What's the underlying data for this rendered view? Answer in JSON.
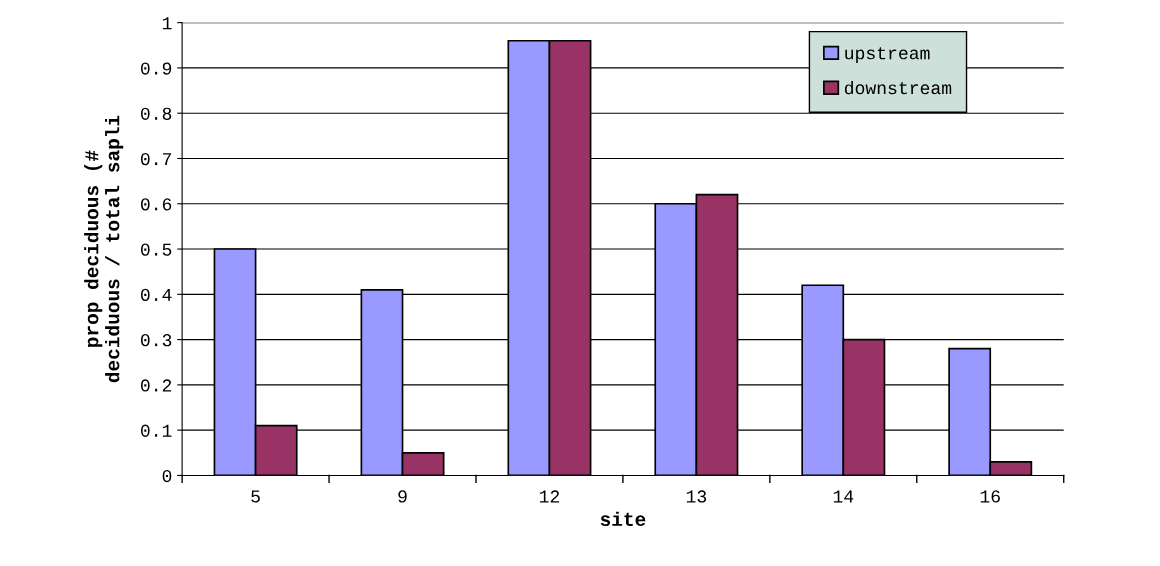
{
  "chart_data": {
    "type": "bar",
    "xlabel": "site",
    "ylabel": "prop deciduous (#\ndeciduous / total sapli",
    "categories": [
      "5",
      "9",
      "12",
      "13",
      "14",
      "16"
    ],
    "series": [
      {
        "name": "upstream",
        "color": "#9999ff",
        "values": [
          0.5,
          0.41,
          0.96,
          0.6,
          0.42,
          0.28
        ]
      },
      {
        "name": "downstream",
        "color": "#993366",
        "values": [
          0.11,
          0.05,
          0.96,
          0.62,
          0.3,
          0.03
        ]
      }
    ],
    "ylim": [
      0,
      1
    ],
    "yticks": [
      0,
      0.1,
      0.2,
      0.3,
      0.4,
      0.5,
      0.6,
      0.7,
      0.8,
      0.9,
      1
    ],
    "grid": "y",
    "legend": "top right"
  }
}
